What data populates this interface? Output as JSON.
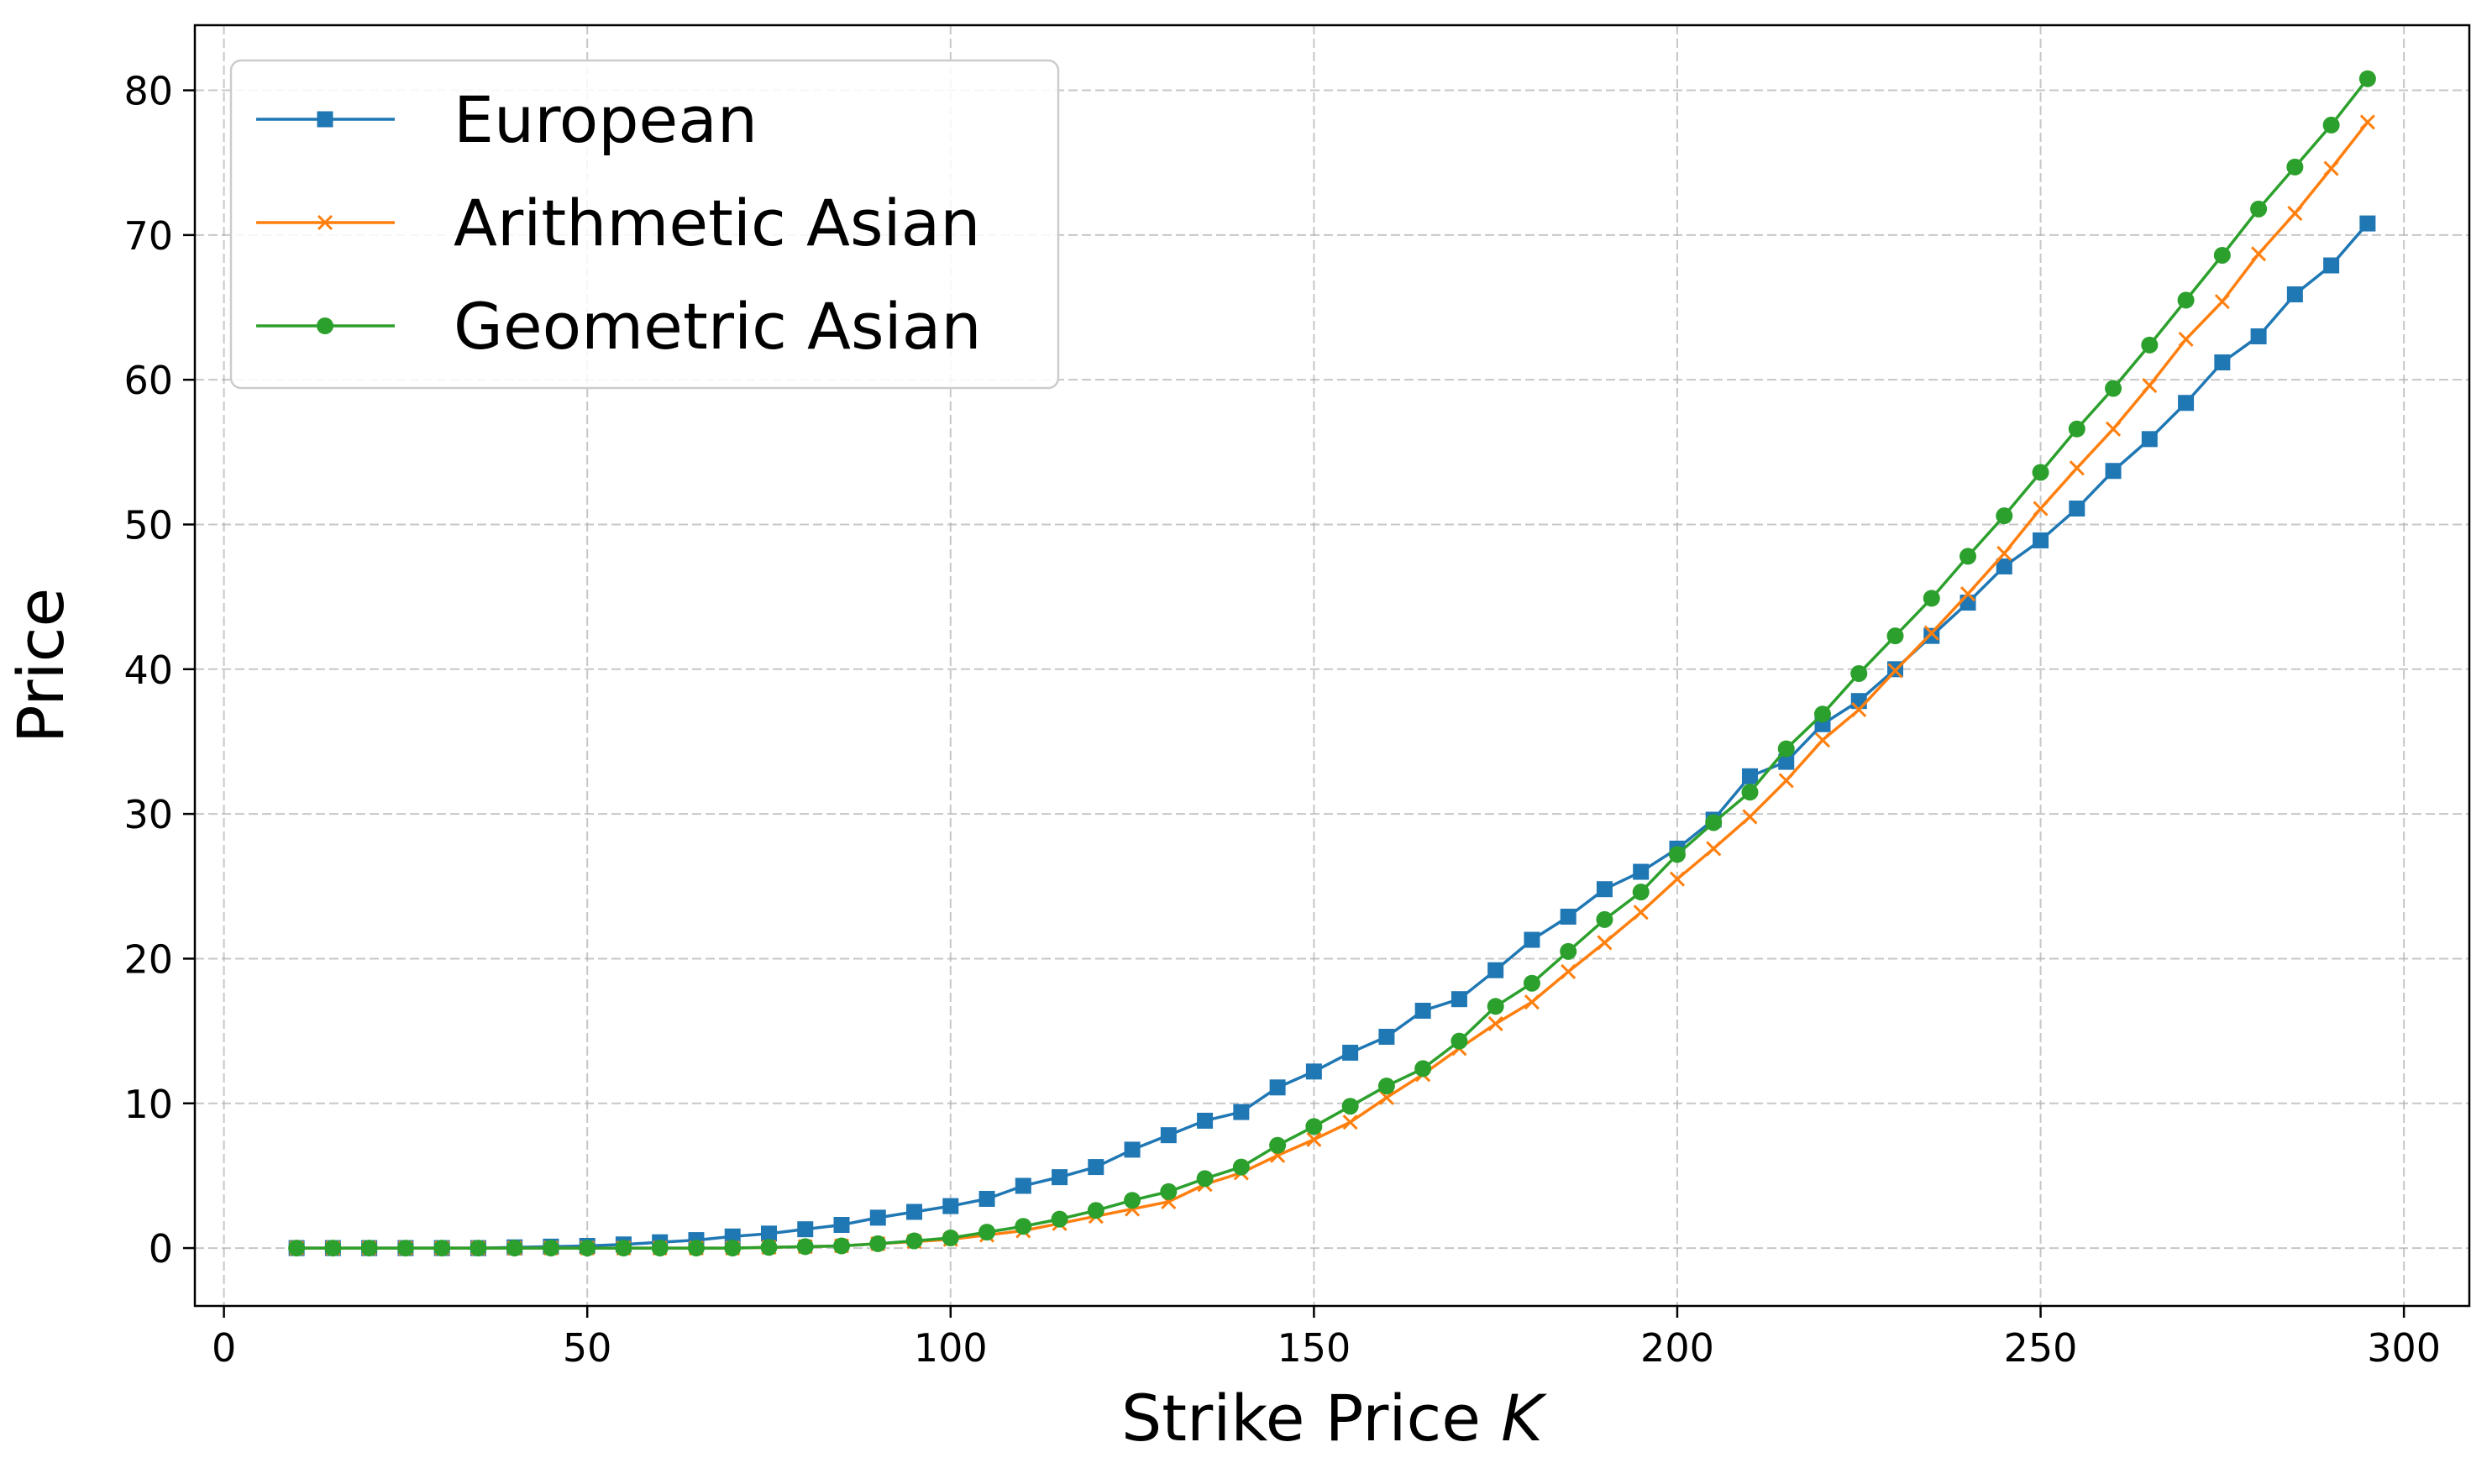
{
  "chart_data": {
    "type": "line",
    "title": "",
    "xlabel": "Strike Price ",
    "xlabel_var": "K",
    "ylabel": "Price",
    "xlim": [
      -4,
      309
    ],
    "ylim": [
      -4,
      84.5
    ],
    "xticks": [
      0,
      50,
      100,
      150,
      200,
      250,
      300
    ],
    "yticks": [
      0,
      10,
      20,
      30,
      40,
      50,
      60,
      70,
      80
    ],
    "grid": true,
    "legend_position": "top-left",
    "x": [
      10,
      15,
      20,
      25,
      30,
      35,
      40,
      45,
      50,
      55,
      60,
      65,
      70,
      75,
      80,
      85,
      90,
      95,
      100,
      105,
      110,
      115,
      120,
      125,
      130,
      135,
      140,
      145,
      150,
      155,
      160,
      165,
      170,
      175,
      180,
      185,
      190,
      195,
      200,
      205,
      210,
      215,
      220,
      225,
      230,
      235,
      240,
      245,
      250,
      255,
      260,
      265,
      270,
      275,
      280,
      285,
      290,
      295
    ],
    "series": [
      {
        "name": "European",
        "color": "#1f77b4",
        "marker": "square",
        "values": [
          0.0,
          0.0,
          0.0,
          0.0,
          0.0,
          0.0,
          0.05,
          0.1,
          0.15,
          0.25,
          0.4,
          0.55,
          0.8,
          1.0,
          1.3,
          1.6,
          2.1,
          2.5,
          2.9,
          3.4,
          4.3,
          4.9,
          5.6,
          6.8,
          7.8,
          8.8,
          9.4,
          11.1,
          12.2,
          13.5,
          14.6,
          16.4,
          17.2,
          19.2,
          21.3,
          22.9,
          24.8,
          26.0,
          27.6,
          29.6,
          32.6,
          33.6,
          36.2,
          37.8,
          40.0,
          42.3,
          44.6,
          47.1,
          48.9,
          51.1,
          53.7,
          55.9,
          58.4,
          61.2,
          63.0,
          65.9,
          67.9,
          70.8
        ]
      },
      {
        "name": "Arithmetic Asian",
        "color": "#ff7f0e",
        "marker": "x",
        "values": [
          0.0,
          0.0,
          0.0,
          0.0,
          0.0,
          0.0,
          0.0,
          0.0,
          0.0,
          0.0,
          0.0,
          0.0,
          0.0,
          0.05,
          0.1,
          0.15,
          0.3,
          0.45,
          0.6,
          0.9,
          1.2,
          1.7,
          2.2,
          2.7,
          3.2,
          4.4,
          5.2,
          6.4,
          7.5,
          8.7,
          10.4,
          12.0,
          13.8,
          15.5,
          17.0,
          19.1,
          21.1,
          23.2,
          25.5,
          27.6,
          29.8,
          32.3,
          35.1,
          37.2,
          39.9,
          42.5,
          45.2,
          48.0,
          51.1,
          53.9,
          56.6,
          59.6,
          62.8,
          65.4,
          68.7,
          71.5,
          74.6,
          77.8
        ]
      },
      {
        "name": "Geometric Asian",
        "color": "#2ca02c",
        "marker": "circle",
        "values": [
          0.0,
          0.0,
          0.0,
          0.0,
          0.0,
          0.0,
          0.0,
          0.0,
          0.0,
          0.0,
          0.0,
          0.0,
          0.0,
          0.05,
          0.1,
          0.15,
          0.3,
          0.5,
          0.7,
          1.1,
          1.5,
          2.0,
          2.6,
          3.3,
          3.9,
          4.8,
          5.6,
          7.1,
          8.4,
          9.8,
          11.2,
          12.4,
          14.3,
          16.7,
          18.3,
          20.5,
          22.7,
          24.6,
          27.2,
          29.4,
          31.5,
          34.5,
          36.9,
          39.7,
          42.3,
          44.9,
          47.8,
          50.6,
          53.6,
          56.6,
          59.4,
          62.4,
          65.5,
          68.6,
          71.8,
          74.7,
          77.6,
          80.8
        ]
      }
    ]
  }
}
